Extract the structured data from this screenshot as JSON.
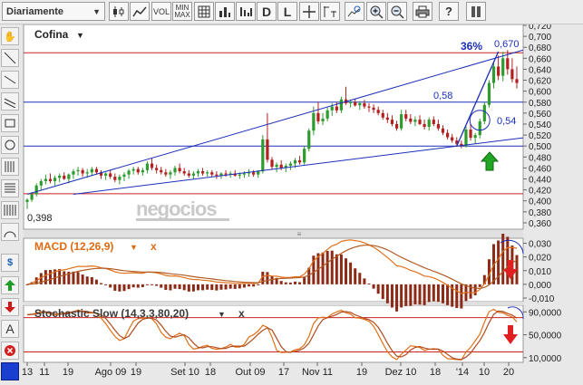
{
  "toolbar": {
    "period_label": "Diariamente",
    "buttons": [
      "candles",
      "line-chart",
      "volume",
      "minmax",
      "grid",
      "bar-chart",
      "daily",
      "log",
      "crosshair",
      "draw-line",
      "zoom-chart",
      "zoom-in",
      "zoom-out",
      "print",
      "help",
      "bookmark"
    ],
    "vol": "VOL",
    "minmax_top": "MIN",
    "minmax_bottom": "MAX",
    "daily": "D",
    "log": "L"
  },
  "left_tools": [
    "hand",
    "line",
    "line",
    "parallel",
    "rectangle",
    "circle",
    "fibonacci",
    "fibonacci-h",
    "gann",
    "arc",
    "dollar",
    "arrow-up",
    "arrow-down",
    "text",
    "delete"
  ],
  "chart_data": [
    {
      "type": "candlestick",
      "title": "Cofina",
      "title_arrow": "▼",
      "ylim": [
        0.35,
        0.72
      ],
      "yticks": [
        "0,720",
        "0,700",
        "0,680",
        "0,660",
        "0,640",
        "0,620",
        "0,600",
        "0,580",
        "0,560",
        "0,540",
        "0,520",
        "0,500",
        "0,480",
        "0,460",
        "0,440",
        "0,420",
        "0,400",
        "0,380",
        "0,360"
      ],
      "xticks": [
        "13",
        "11",
        "19",
        "Ago 09",
        "19",
        "Set 10",
        "18",
        "Out 09",
        "17",
        "Nov 11",
        "19",
        "Dez 10",
        "18",
        "'14",
        "10",
        "20"
      ],
      "candles": [
        [
          0.398,
          0.405,
          0.385,
          0.402
        ],
        [
          0.402,
          0.416,
          0.398,
          0.412
        ],
        [
          0.412,
          0.432,
          0.408,
          0.428
        ],
        [
          0.428,
          0.44,
          0.42,
          0.436
        ],
        [
          0.436,
          0.448,
          0.43,
          0.44
        ],
        [
          0.44,
          0.45,
          0.432,
          0.436
        ],
        [
          0.436,
          0.446,
          0.428,
          0.442
        ],
        [
          0.442,
          0.45,
          0.434,
          0.446
        ],
        [
          0.446,
          0.452,
          0.438,
          0.44
        ],
        [
          0.44,
          0.45,
          0.432,
          0.448
        ],
        [
          0.448,
          0.458,
          0.44,
          0.454
        ],
        [
          0.454,
          0.462,
          0.446,
          0.456
        ],
        [
          0.456,
          0.46,
          0.444,
          0.45
        ],
        [
          0.45,
          0.458,
          0.442,
          0.452
        ],
        [
          0.452,
          0.462,
          0.446,
          0.458
        ],
        [
          0.458,
          0.462,
          0.448,
          0.452
        ],
        [
          0.452,
          0.456,
          0.44,
          0.446
        ],
        [
          0.446,
          0.452,
          0.438,
          0.45
        ],
        [
          0.45,
          0.456,
          0.44,
          0.444
        ],
        [
          0.444,
          0.45,
          0.434,
          0.438
        ],
        [
          0.438,
          0.448,
          0.43,
          0.444
        ],
        [
          0.444,
          0.452,
          0.436,
          0.448
        ],
        [
          0.448,
          0.458,
          0.44,
          0.455
        ],
        [
          0.455,
          0.462,
          0.448,
          0.458
        ],
        [
          0.458,
          0.462,
          0.448,
          0.452
        ],
        [
          0.452,
          0.46,
          0.446,
          0.456
        ],
        [
          0.456,
          0.472,
          0.45,
          0.468
        ],
        [
          0.468,
          0.478,
          0.456,
          0.46
        ],
        [
          0.46,
          0.466,
          0.45,
          0.456
        ],
        [
          0.456,
          0.462,
          0.448,
          0.452
        ],
        [
          0.452,
          0.458,
          0.444,
          0.448
        ],
        [
          0.448,
          0.456,
          0.44,
          0.452
        ],
        [
          0.452,
          0.464,
          0.446,
          0.46
        ],
        [
          0.46,
          0.468,
          0.45,
          0.454
        ],
        [
          0.454,
          0.46,
          0.446,
          0.45
        ],
        [
          0.45,
          0.456,
          0.442,
          0.446
        ],
        [
          0.446,
          0.454,
          0.44,
          0.45
        ],
        [
          0.45,
          0.458,
          0.444,
          0.454
        ],
        [
          0.454,
          0.46,
          0.446,
          0.45
        ],
        [
          0.45,
          0.456,
          0.444,
          0.452
        ],
        [
          0.452,
          0.456,
          0.444,
          0.448
        ],
        [
          0.448,
          0.454,
          0.44,
          0.446
        ],
        [
          0.446,
          0.452,
          0.44,
          0.45
        ],
        [
          0.45,
          0.456,
          0.444,
          0.448
        ],
        [
          0.448,
          0.454,
          0.442,
          0.45
        ],
        [
          0.45,
          0.456,
          0.444,
          0.446
        ],
        [
          0.446,
          0.452,
          0.44,
          0.448
        ],
        [
          0.448,
          0.454,
          0.442,
          0.45
        ],
        [
          0.45,
          0.458,
          0.444,
          0.452
        ],
        [
          0.452,
          0.456,
          0.444,
          0.448
        ],
        [
          0.448,
          0.456,
          0.442,
          0.454
        ],
        [
          0.454,
          0.52,
          0.45,
          0.512
        ],
        [
          0.512,
          0.56,
          0.47,
          0.475
        ],
        [
          0.475,
          0.48,
          0.458,
          0.462
        ],
        [
          0.462,
          0.47,
          0.452,
          0.466
        ],
        [
          0.466,
          0.474,
          0.456,
          0.46
        ],
        [
          0.46,
          0.468,
          0.452,
          0.464
        ],
        [
          0.464,
          0.472,
          0.456,
          0.468
        ],
        [
          0.468,
          0.478,
          0.46,
          0.474
        ],
        [
          0.474,
          0.482,
          0.466,
          0.47
        ],
        [
          0.47,
          0.5,
          0.466,
          0.495
        ],
        [
          0.495,
          0.532,
          0.49,
          0.528
        ],
        [
          0.528,
          0.572,
          0.52,
          0.56
        ],
        [
          0.56,
          0.58,
          0.54,
          0.545
        ],
        [
          0.545,
          0.56,
          0.538,
          0.55
        ],
        [
          0.55,
          0.57,
          0.545,
          0.565
        ],
        [
          0.565,
          0.578,
          0.555,
          0.572
        ],
        [
          0.572,
          0.58,
          0.56,
          0.565
        ],
        [
          0.565,
          0.59,
          0.56,
          0.585
        ],
        [
          0.585,
          0.608,
          0.575,
          0.578
        ],
        [
          0.578,
          0.585,
          0.57,
          0.58
        ],
        [
          0.58,
          0.586,
          0.572,
          0.574
        ],
        [
          0.574,
          0.582,
          0.566,
          0.578
        ],
        [
          0.578,
          0.584,
          0.568,
          0.572
        ],
        [
          0.572,
          0.578,
          0.562,
          0.57
        ],
        [
          0.57,
          0.576,
          0.56,
          0.566
        ],
        [
          0.566,
          0.572,
          0.556,
          0.56
        ],
        [
          0.56,
          0.566,
          0.548,
          0.552
        ],
        [
          0.552,
          0.56,
          0.542,
          0.548
        ],
        [
          0.548,
          0.556,
          0.536,
          0.54
        ],
        [
          0.54,
          0.546,
          0.528,
          0.532
        ],
        [
          0.532,
          0.566,
          0.528,
          0.558
        ],
        [
          0.558,
          0.566,
          0.545,
          0.55
        ],
        [
          0.55,
          0.558,
          0.54,
          0.544
        ],
        [
          0.544,
          0.554,
          0.536,
          0.548
        ],
        [
          0.548,
          0.556,
          0.538,
          0.54
        ],
        [
          0.54,
          0.548,
          0.53,
          0.535
        ],
        [
          0.535,
          0.552,
          0.528,
          0.548
        ],
        [
          0.548,
          0.554,
          0.536,
          0.54
        ],
        [
          0.54,
          0.548,
          0.528,
          0.532
        ],
        [
          0.532,
          0.538,
          0.52,
          0.524
        ],
        [
          0.524,
          0.53,
          0.512,
          0.516
        ],
        [
          0.516,
          0.522,
          0.506,
          0.51
        ],
        [
          0.51,
          0.516,
          0.5,
          0.504
        ],
        [
          0.504,
          0.51,
          0.496,
          0.5
        ],
        [
          0.5,
          0.536,
          0.497,
          0.53
        ],
        [
          0.53,
          0.54,
          0.51,
          0.515
        ],
        [
          0.515,
          0.524,
          0.504,
          0.52
        ],
        [
          0.52,
          0.55,
          0.514,
          0.545
        ],
        [
          0.545,
          0.58,
          0.54,
          0.575
        ],
        [
          0.575,
          0.62,
          0.57,
          0.615
        ],
        [
          0.615,
          0.655,
          0.605,
          0.645
        ],
        [
          0.645,
          0.665,
          0.62,
          0.628
        ],
        [
          0.628,
          0.672,
          0.618,
          0.66
        ],
        [
          0.66,
          0.675,
          0.63,
          0.64
        ],
        [
          0.64,
          0.66,
          0.616,
          0.622
        ],
        [
          0.622,
          0.645,
          0.605,
          0.615
        ]
      ],
      "lines": {
        "resistance_high": 0.67,
        "support_mid": 0.58,
        "support_low": 0.5,
        "bottom_line": 0.413
      },
      "annotations": {
        "low_label": "0,398",
        "level_label": "0,58",
        "circle_label": "0,54",
        "percent_label": "36%",
        "high_label": "0,670"
      },
      "watermark": "negocios"
    },
    {
      "type": "line",
      "title": "MACD (12,26,9)",
      "title_arrow": "▼",
      "close_mark": "x",
      "ylim": [
        -0.012,
        0.033
      ],
      "yticks": [
        "0,030",
        "0,020",
        "0,010",
        "0,000",
        "-0,010"
      ],
      "colors": {
        "histogram": "#8b2a16",
        "macd": "#e0701a",
        "signal": "#b25b22"
      }
    },
    {
      "type": "line",
      "title": "Stochastic Slow (14,3,3,80,20)",
      "title_arrow": "▼",
      "close_mark": "x",
      "ylim": [
        5,
        100
      ],
      "yticks": [
        "90,0000",
        "50,0000",
        "10,0000"
      ],
      "levels": [
        80,
        20
      ],
      "colors": {
        "k": "#e07018",
        "d": "#b04a1e"
      }
    }
  ]
}
